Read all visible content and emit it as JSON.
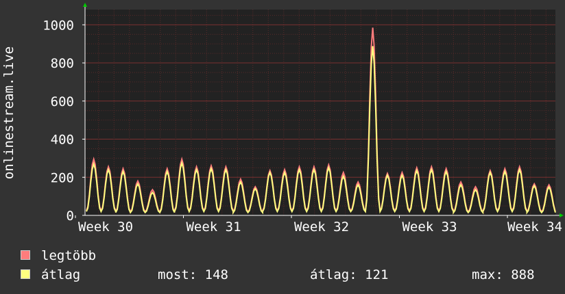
{
  "chart_data": {
    "type": "line",
    "ylabel": "onlinestream.live",
    "ylim": [
      0,
      1000
    ],
    "yticks": [
      0,
      200,
      400,
      600,
      800,
      1000
    ],
    "xticks": [
      "Week 30",
      "Week 31",
      "Week 32",
      "Week 33",
      "Week 34"
    ],
    "grid": true,
    "series": [
      {
        "name": "legtöbb",
        "color": "#ff7c7c",
        "peaks": [
          295,
          255,
          245,
          180,
          135,
          245,
          295,
          255,
          260,
          255,
          190,
          150,
          235,
          240,
          255,
          255,
          265,
          225,
          175,
          985,
          220,
          225,
          250,
          255,
          245,
          175,
          150,
          235,
          245,
          255,
          165,
          160
        ],
        "troughs": [
          25,
          25,
          20,
          20,
          20,
          20,
          25,
          25,
          25,
          25,
          20,
          20,
          25,
          25,
          25,
          25,
          25,
          25,
          25,
          25,
          25,
          25,
          25,
          25,
          25,
          20,
          20,
          25,
          25,
          25,
          20,
          20
        ]
      },
      {
        "name": "átlag",
        "color": "#ffff80",
        "peaks": [
          270,
          240,
          230,
          165,
          120,
          230,
          275,
          240,
          245,
          240,
          175,
          140,
          225,
          225,
          240,
          240,
          250,
          205,
          160,
          888,
          210,
          210,
          235,
          240,
          230,
          160,
          135,
          225,
          230,
          240,
          155,
          148
        ],
        "troughs": [
          20,
          20,
          15,
          15,
          15,
          15,
          20,
          20,
          20,
          20,
          15,
          15,
          20,
          20,
          20,
          20,
          20,
          20,
          20,
          20,
          20,
          20,
          20,
          20,
          20,
          15,
          15,
          20,
          20,
          20,
          15,
          15
        ]
      }
    ],
    "legend": {
      "items": [
        "legtöbb",
        "átlag"
      ],
      "stats": {
        "now": "most: 148",
        "avg": "átlag: 121",
        "max": "max: 888"
      }
    },
    "colors": {
      "background": "#333333",
      "plot_background": "#222222",
      "grid": "#5a2a2a",
      "axis": "#ffffff",
      "arrow": "#00cc00"
    }
  }
}
